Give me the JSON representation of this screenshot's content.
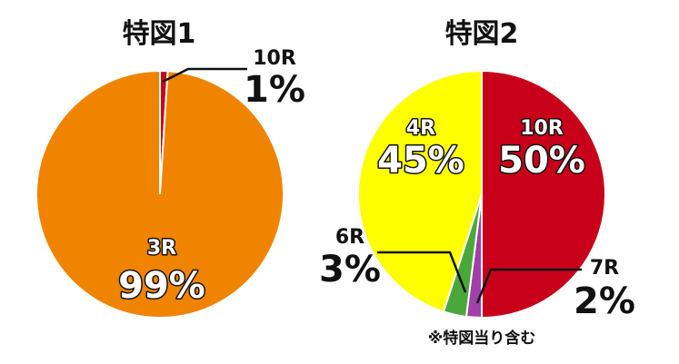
{
  "chart_data": [
    {
      "type": "pie",
      "title": "特図1",
      "slices": [
        {
          "label": "10R",
          "value": 1,
          "value_text": "1%",
          "color": "#c8001a"
        },
        {
          "label": "3R",
          "value": 99,
          "value_text": "99%",
          "color": "#f08300"
        }
      ]
    },
    {
      "type": "pie",
      "title": "特図2",
      "slices": [
        {
          "label": "10R",
          "value": 50,
          "value_text": "50%",
          "color": "#c8001a"
        },
        {
          "label": "7R",
          "value": 2,
          "value_text": "2%",
          "color": "#a040a8"
        },
        {
          "label": "6R",
          "value": 3,
          "value_text": "3%",
          "color": "#4aa83a"
        },
        {
          "label": "4R",
          "value": 45,
          "value_text": "45%",
          "color": "#ffff00"
        }
      ],
      "note": "※特図当り含む"
    }
  ]
}
